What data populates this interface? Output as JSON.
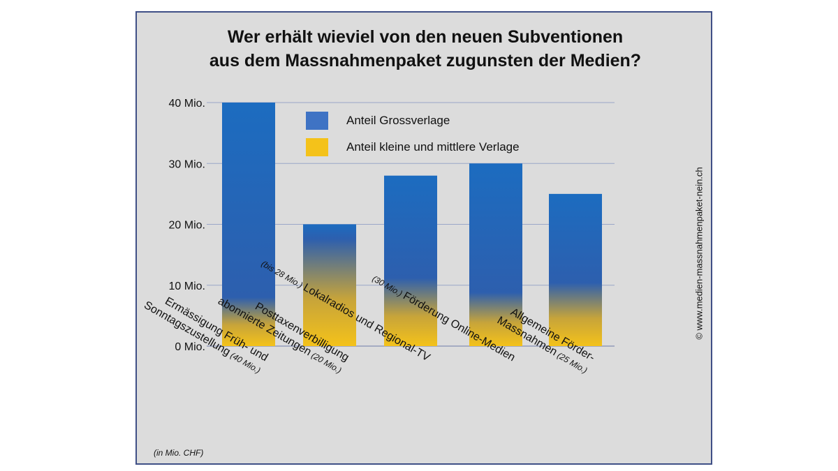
{
  "colors": {
    "grossverlage": "#1c6cc0",
    "kleine_mittlere": "#f4c21a",
    "frame": "#3f4f86",
    "panel": "#dcdcdc",
    "grid": "#9aa6c8"
  },
  "chart_data": {
    "type": "bar",
    "stacked": true,
    "title": "Wer erhält wieviel von den neuen Subventionen aus dem Massnahmenpaket zugunsten der Medien?",
    "title_lines": [
      "Wer erhält wieviel von den neuen Subventionen",
      "aus dem Massnahmenpaket zugunsten der Medien?"
    ],
    "ylim": [
      0,
      40
    ],
    "yticks": [
      0,
      10,
      20,
      30,
      40
    ],
    "ytick_labels": [
      "0 Mio.",
      "10 Mio.",
      "20 Mio.",
      "30 Mio.",
      "40 Mio."
    ],
    "grid": true,
    "legend_position": "top",
    "series": [
      {
        "name": "Anteil Grossverlage",
        "color": "#1c6cc0",
        "values": [
          35,
          9,
          21,
          24.5,
          18.5
        ]
      },
      {
        "name": "Anteil kleine und mittlere Verlage",
        "color": "#f4c21a",
        "values": [
          5,
          11,
          7,
          5.5,
          6.5
        ]
      }
    ],
    "totals": [
      40,
      20,
      28,
      30,
      25
    ],
    "categories": [
      {
        "lines": [
          "Ermässigung Früh- und",
          "Sonntagszustellung"
        ],
        "note": "(40 Mio.)"
      },
      {
        "lines": [
          "Posttaxenverbilligung",
          "abonnierte Zeitungen"
        ],
        "note": "(20 Mio.)"
      },
      {
        "lines": [
          "Lokalradios und Regional-TV"
        ],
        "prefix": "(bis 28 Mio.)"
      },
      {
        "lines": [
          "Förderung Online-Medien"
        ],
        "prefix": "(30 Mio.)"
      },
      {
        "lines": [
          "Allgemeine Förder-",
          "Massnahmen"
        ],
        "note": "(25 Mio.)"
      }
    ],
    "unit_note": "(in Mio. CHF)",
    "copyright": "© www.medien-massnahmenpaket-nein.ch"
  }
}
